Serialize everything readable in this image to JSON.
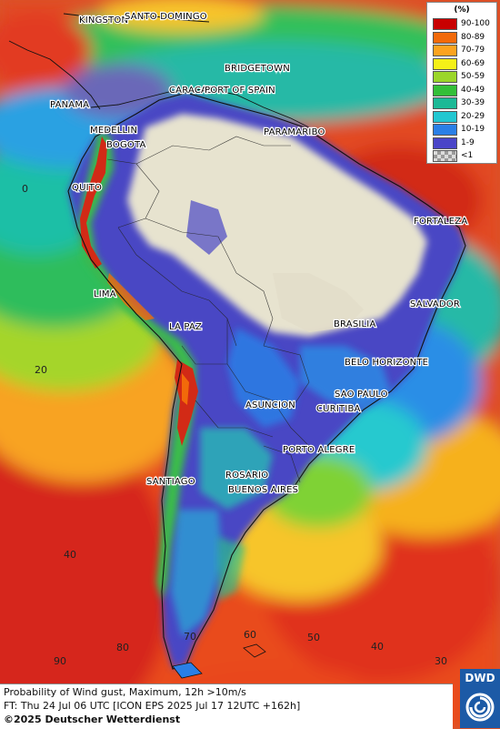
{
  "legend": {
    "unit": "(%)",
    "items": [
      {
        "label": "90-100",
        "color": "#c80000"
      },
      {
        "label": "80-89",
        "color": "#f26a0a"
      },
      {
        "label": "70-79",
        "color": "#fca31f"
      },
      {
        "label": "60-69",
        "color": "#f5f018"
      },
      {
        "label": "50-59",
        "color": "#9bd62a"
      },
      {
        "label": "40-49",
        "color": "#33bf38"
      },
      {
        "label": "30-39",
        "color": "#1bb996"
      },
      {
        "label": "20-29",
        "color": "#22c7d1"
      },
      {
        "label": "10-19",
        "color": "#2a7fe6"
      },
      {
        "label": "1-9",
        "color": "#4a45c8"
      },
      {
        "label": "<1",
        "color": "#b8b8b8"
      }
    ]
  },
  "cities": {
    "kingston": "KINGSTON",
    "santo_domingo": "SANTO DOMINGO",
    "bridgetown": "BRIDGETOWN",
    "caracas": "CARACAS",
    "port_of_spain": "PORT OF SPAIN",
    "panama": "PANAMA",
    "medellin": "MEDELLIN",
    "bogota": "BOGOTA",
    "paramaribo": "PARAMARIBO",
    "quito": "QUITO",
    "fortaleza": "FORTALEZA",
    "lima": "LIMA",
    "salvador": "SALVADOR",
    "la_paz": "LA PAZ",
    "brasilia": "BRASILIA",
    "belo_horizonte": "BELO HORIZONTE",
    "sao_paulo": "SAO PAULO",
    "asuncion": "ASUNCION",
    "curitiba": "CURITIBA",
    "porto_alegre": "PORTO ALEGRE",
    "rosario": "ROSARIO",
    "buenos_aires": "BUENOS AIRES",
    "santiago": "SANTIAGO"
  },
  "grid_labels": {
    "lat_0": "0",
    "lat_20": "20",
    "lat_40": "40",
    "lon_90": "90",
    "lon_80": "80",
    "lon_70": "70",
    "lon_60": "60",
    "lon_50": "50",
    "lon_40": "40",
    "lon_30": "30"
  },
  "footer": {
    "line1": "Probability of Wind gust, Maximum, 12h >10m/s",
    "line2": "FT: Thu 24 Jul 06 UTC [ICON EPS 2025 Jul 17 12UTC +162h]",
    "line3": "©2025 Deutscher Wetterdienst"
  },
  "logo": {
    "text": "DWD"
  }
}
